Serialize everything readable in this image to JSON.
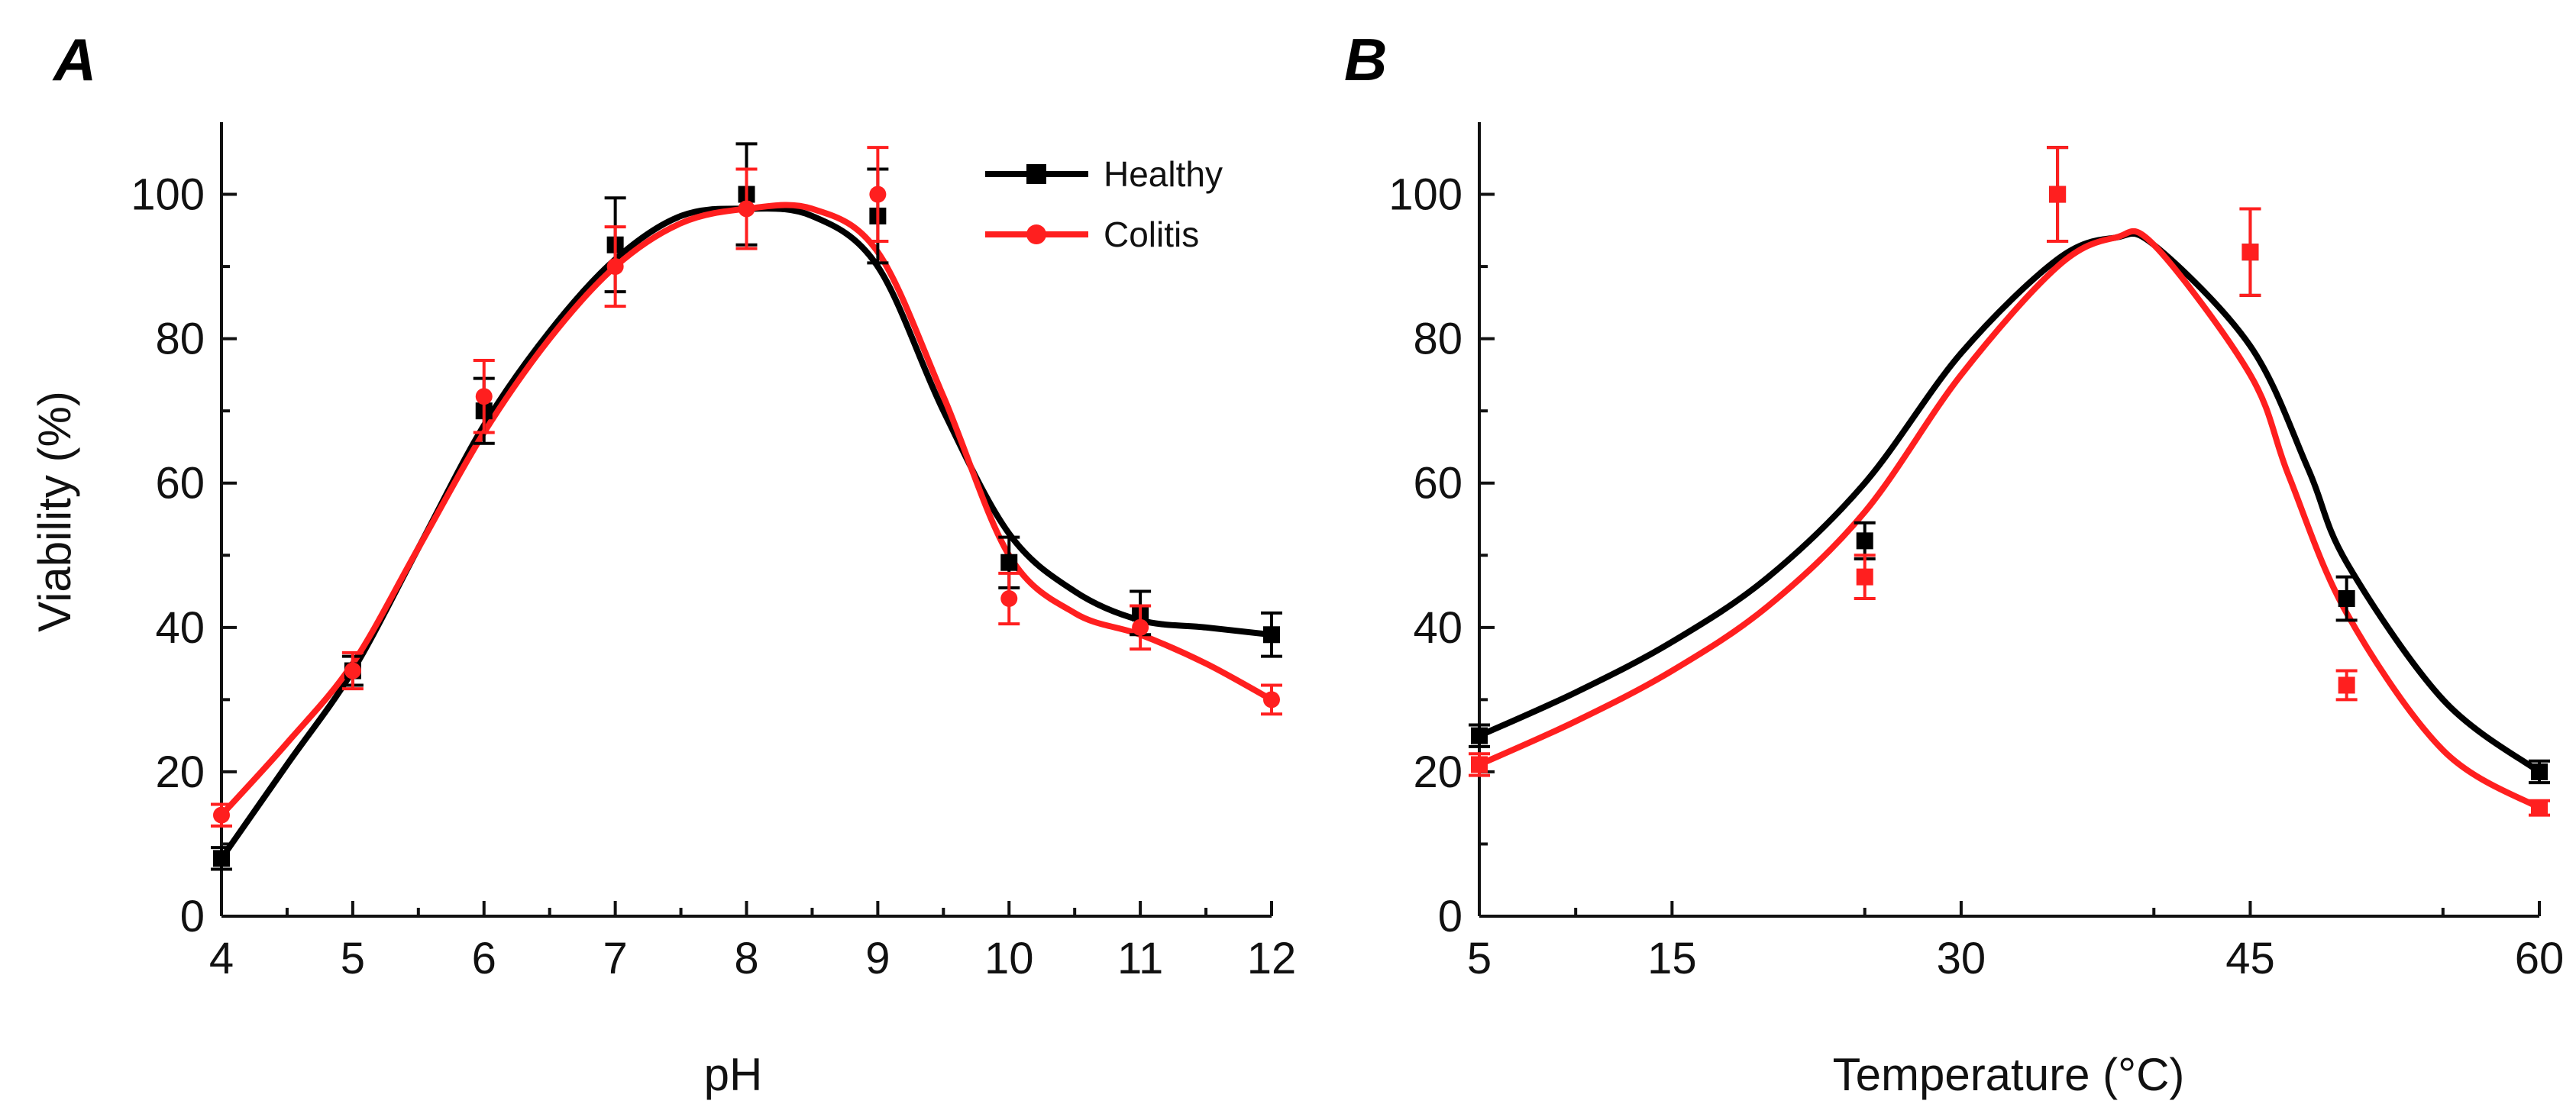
{
  "figure": {
    "colors": {
      "healthy": "#000000",
      "colitis": "#ff1f1f",
      "axis": "#111111",
      "background": "#ffffff"
    }
  },
  "chart_data": [
    {
      "panel": "A",
      "type": "line",
      "xlabel": "pH",
      "ylabel": "Viability (%)",
      "xlim": [
        4,
        12
      ],
      "ylim": [
        0,
        110
      ],
      "xticks": [
        4,
        5,
        6,
        7,
        8,
        9,
        10,
        11,
        12
      ],
      "xtick_labels": [
        "4",
        "5",
        "6",
        "7",
        "8",
        "9",
        "10",
        "11",
        "12"
      ],
      "yticks": [
        0,
        20,
        40,
        60,
        80,
        100
      ],
      "ytick_labels": [
        "0",
        "20",
        "40",
        "60",
        "80",
        "100"
      ],
      "legend": {
        "position": "top-right",
        "entries": [
          "Healthy",
          "Colitis"
        ]
      },
      "series": [
        {
          "name": "Healthy",
          "marker": "square",
          "x": [
            4,
            5,
            6,
            7,
            8,
            9,
            10,
            11,
            12
          ],
          "y": [
            8,
            34,
            70,
            93,
            100,
            97,
            49,
            42,
            39
          ],
          "err": [
            1.5,
            2,
            4.5,
            6.5,
            7,
            6.5,
            3.5,
            3,
            3
          ],
          "curve_x": [
            4.0,
            4.5,
            5.0,
            5.5,
            6.0,
            6.5,
            7.0,
            7.5,
            8.0,
            8.5,
            9.0,
            9.5,
            10.0,
            10.5,
            11.0,
            11.5,
            12.0
          ],
          "curve_y": [
            8,
            21,
            34,
            51,
            68,
            81,
            91,
            97,
            98,
            97,
            90,
            70,
            53,
            45,
            41,
            40,
            39
          ]
        },
        {
          "name": "Colitis",
          "marker": "circle",
          "x": [
            4,
            5,
            6,
            7,
            8,
            9,
            10,
            11,
            12
          ],
          "y": [
            14,
            34,
            72,
            90,
            98,
            100,
            44,
            40,
            30
          ],
          "err": [
            1.5,
            2.5,
            5,
            5.5,
            5.5,
            6.5,
            3.5,
            3,
            2
          ],
          "curve_x": [
            4.0,
            4.5,
            5.0,
            5.5,
            6.0,
            6.5,
            7.0,
            7.5,
            8.0,
            8.5,
            9.0,
            9.5,
            10.0,
            10.5,
            11.0,
            11.5,
            12.0
          ],
          "curve_y": [
            14,
            24,
            35,
            51,
            67,
            80,
            90,
            96,
            98,
            98,
            92,
            72,
            50,
            42,
            39,
            35,
            30
          ]
        }
      ]
    },
    {
      "panel": "B",
      "type": "line",
      "xlabel": "Temperature (°C)",
      "ylabel": "",
      "xlim": [
        5,
        60
      ],
      "ylim": [
        0,
        110
      ],
      "xticks": [
        5,
        15,
        30,
        45,
        60
      ],
      "xtick_labels": [
        "5",
        "15",
        "30",
        "45",
        "60"
      ],
      "yticks": [
        0,
        20,
        40,
        60,
        80,
        100
      ],
      "ytick_labels": [
        "0",
        "20",
        "40",
        "60",
        "80",
        "100"
      ],
      "series": [
        {
          "name": "Healthy",
          "marker": "square",
          "x": [
            5,
            25,
            35,
            45,
            50,
            60
          ],
          "y": [
            25,
            52,
            100,
            92,
            44,
            20
          ],
          "err": [
            1.5,
            2.5,
            6.5,
            6,
            3,
            1.5
          ],
          "curve_x": [
            5,
            10,
            15,
            20,
            25,
            30,
            35,
            38,
            40,
            45,
            48,
            50,
            55,
            60
          ],
          "curve_y": [
            25,
            31,
            38,
            47,
            60,
            78,
            91,
            94,
            93,
            79,
            62,
            49,
            30,
            20
          ]
        },
        {
          "name": "Colitis",
          "marker": "square",
          "x": [
            5,
            25,
            35,
            45,
            50,
            60
          ],
          "y": [
            21,
            47,
            100,
            92,
            32,
            15
          ],
          "err": [
            1.5,
            3,
            6.5,
            6,
            2,
            1
          ],
          "curve_x": [
            5,
            10,
            15,
            20,
            25,
            30,
            35,
            38,
            40,
            45,
            47,
            50,
            55,
            60
          ],
          "curve_y": [
            21,
            27,
            34,
            43,
            56,
            75,
            90,
            94,
            93,
            75,
            61,
            42,
            23,
            15
          ]
        }
      ]
    }
  ]
}
